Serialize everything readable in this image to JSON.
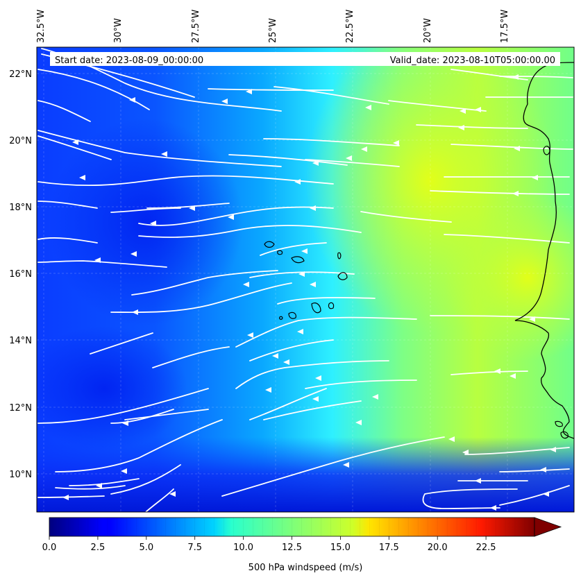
{
  "map": {
    "start_date_text": "Start date: 2023-08-09_00:00:00",
    "valid_date_text": "Valid_date: 2023-08-10T05:00:00.00",
    "variable_label": "500 hPa windspeed (m/s)",
    "lon_ticks": [
      "32.5°W",
      "30°W",
      "27.5°W",
      "25°W",
      "22.5°W",
      "20°W",
      "17.5°W"
    ],
    "lat_ticks": [
      "22°N",
      "20°N",
      "18°N",
      "16°N",
      "14°N",
      "12°N",
      "10°N"
    ],
    "colorbar": {
      "ticks": [
        "0.0",
        "2.5",
        "5.0",
        "7.5",
        "10.0",
        "12.5",
        "15.0",
        "17.5",
        "20.0",
        "22.5"
      ],
      "min": 0,
      "max": 25,
      "colormap": "jet",
      "extend": "max"
    },
    "colors": {
      "streamline": "#ffffff",
      "coastline": "#000000",
      "background_field_dominant": "#00a0ff"
    }
  }
}
